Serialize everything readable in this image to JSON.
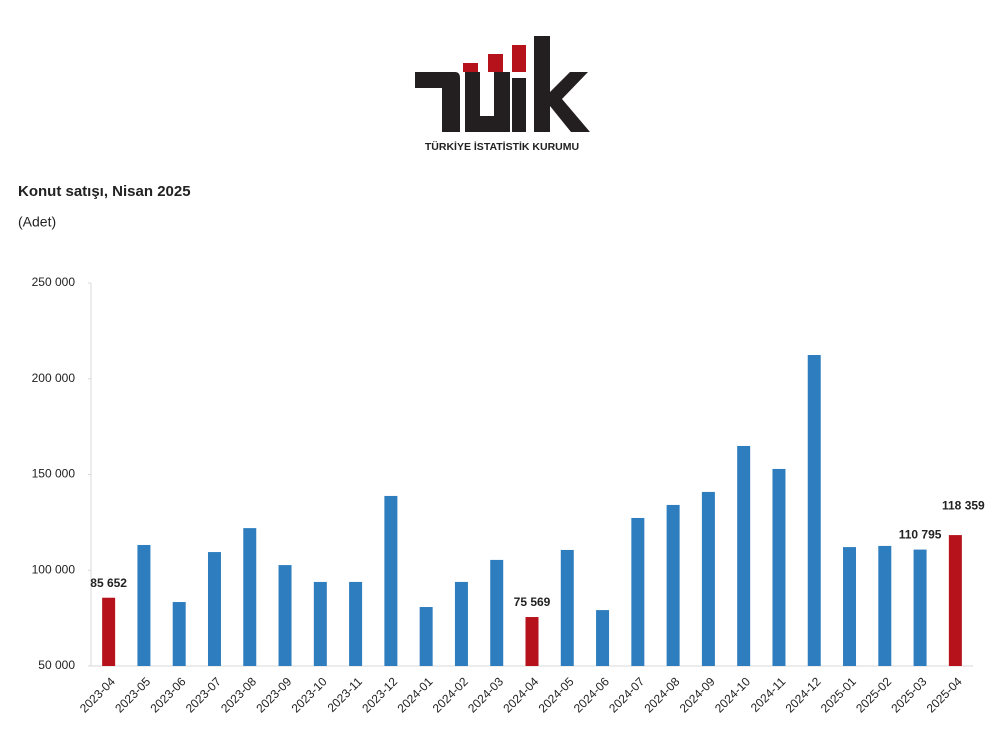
{
  "logo": {
    "name": "TÜRKİYE İSTATİSTİK KURUMU"
  },
  "chart_data": {
    "type": "bar",
    "title": "Konut satışı, Nisan 2025",
    "subtitle": "(Adet)",
    "categories": [
      "2023-04",
      "2023-05",
      "2023-06",
      "2023-07",
      "2023-08",
      "2023-09",
      "2023-10",
      "2023-11",
      "2023-12",
      "2024-01",
      "2024-02",
      "2024-03",
      "2024-04",
      "2024-05",
      "2024-06",
      "2024-07",
      "2024-08",
      "2024-09",
      "2024-10",
      "2024-11",
      "2024-12",
      "2025-01",
      "2025-02",
      "2025-03",
      "2025-04"
    ],
    "values": [
      85652,
      113200,
      83400,
      109500,
      122000,
      102700,
      93900,
      93900,
      138800,
      80800,
      93900,
      105400,
      75569,
      110600,
      79200,
      127300,
      134100,
      140900,
      164900,
      152900,
      212400,
      112100,
      112700,
      110795,
      118359
    ],
    "value_labels": [
      "85 652",
      null,
      null,
      null,
      null,
      null,
      null,
      null,
      null,
      null,
      null,
      null,
      "75 569",
      null,
      null,
      null,
      null,
      null,
      null,
      null,
      null,
      null,
      null,
      "110 795",
      "118 359"
    ],
    "colors": [
      "#b5121b",
      "#2e7ebf",
      "#2e7ebf",
      "#2e7ebf",
      "#2e7ebf",
      "#2e7ebf",
      "#2e7ebf",
      "#2e7ebf",
      "#2e7ebf",
      "#2e7ebf",
      "#2e7ebf",
      "#2e7ebf",
      "#b5121b",
      "#2e7ebf",
      "#2e7ebf",
      "#2e7ebf",
      "#2e7ebf",
      "#2e7ebf",
      "#2e7ebf",
      "#2e7ebf",
      "#2e7ebf",
      "#2e7ebf",
      "#2e7ebf",
      "#2e7ebf",
      "#b5121b"
    ],
    "ylim": [
      50000,
      250000
    ],
    "yticks": [
      {
        "value": 50000,
        "label": "50 000"
      },
      {
        "value": 100000,
        "label": "100 000"
      },
      {
        "value": 150000,
        "label": "150 000"
      },
      {
        "value": 200000,
        "label": "200 000"
      },
      {
        "value": 250000,
        "label": "250 000"
      }
    ],
    "grid": false
  }
}
